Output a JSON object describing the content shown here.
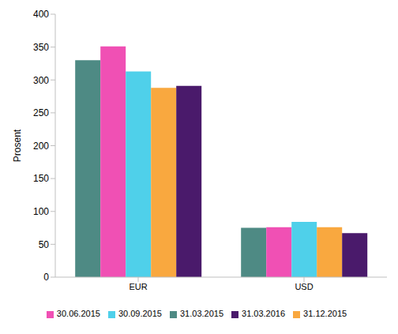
{
  "chart_data": {
    "type": "bar",
    "y_label": "Prosent",
    "categories": [
      "EUR",
      "USD"
    ],
    "series": [
      {
        "name": "31.03.2015",
        "color": "#4e8a84",
        "values": [
          330,
          75
        ]
      },
      {
        "name": "30.06.2015",
        "color": "#f050b4",
        "values": [
          351,
          76
        ]
      },
      {
        "name": "30.09.2015",
        "color": "#4fd0ea",
        "values": [
          313,
          84
        ]
      },
      {
        "name": "31.12.2015",
        "color": "#f9a83f",
        "values": [
          288,
          76
        ]
      },
      {
        "name": "31.03.2016",
        "color": "#4a1a6b",
        "values": [
          291,
          67
        ]
      }
    ],
    "ylim": [
      0,
      400
    ],
    "yticks": [
      0,
      50,
      100,
      150,
      200,
      250,
      300,
      350,
      400
    ],
    "grid": false,
    "legend": "bottom"
  }
}
